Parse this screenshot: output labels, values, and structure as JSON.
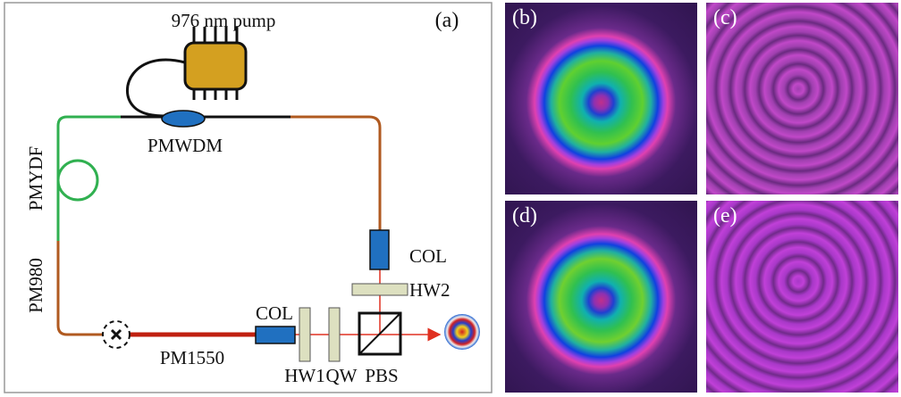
{
  "figure": {
    "panel_a": {
      "label": "(a)",
      "pump": "976 nm pump",
      "wdm": "PMWDM",
      "gain_fiber": "PMYDF",
      "fiber_980": "PM980",
      "fiber_1550": "PM1550",
      "col_top": "COL",
      "hw2": "HW2",
      "col_bottom": "COL",
      "hw1": "HW1",
      "qw": "QW",
      "pbs": "PBS"
    },
    "panels": [
      {
        "label": "(b)"
      },
      {
        "label": "(c)"
      },
      {
        "label": "(d)"
      },
      {
        "label": "(e)"
      }
    ]
  }
}
